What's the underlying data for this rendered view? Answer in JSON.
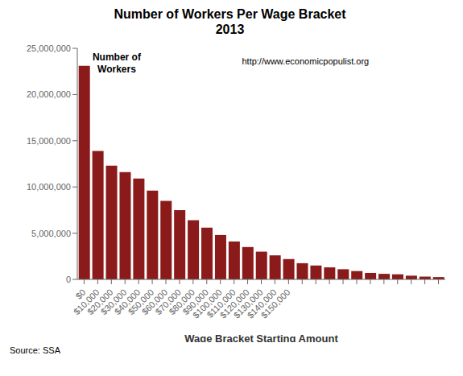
{
  "chart_data": {
    "type": "bar",
    "title": "Number of Workers Per Wage Bracket\n2013",
    "subtitle": "http://www.economicpopulist.org",
    "xlabel": "Wage Bracket Starting Amount",
    "ylabel": "Number of\nWorkers",
    "annotations": [
      "Source: SSA"
    ],
    "categories": [
      "$0",
      "$10,000",
      "$20,000",
      "$30,000",
      "$40,000",
      "$50,000",
      "$60,000",
      "$70,000",
      "$80,000",
      "$90,000",
      "$100,000",
      "$110,000",
      "$120,000",
      "$130,000",
      "$140,000",
      "$150,000",
      null,
      null,
      null,
      null,
      null,
      null,
      null,
      null,
      null,
      null,
      null
    ],
    "values": [
      23100000,
      13900000,
      12300000,
      11600000,
      10900000,
      9600000,
      8500000,
      7500000,
      6400000,
      5600000,
      4800000,
      4100000,
      3500000,
      3000000,
      2600000,
      2200000,
      1750000,
      1500000,
      1300000,
      1100000,
      900000,
      700000,
      600000,
      550000,
      400000,
      300000,
      250000
    ],
    "color": "#8B1A1A",
    "ylim": [
      0,
      25000000
    ],
    "yticks": [
      0,
      {
        "value": 5000000,
        "label": "5,000,000"
      },
      {
        "value": 10000000,
        "label": "10,000,000"
      },
      {
        "value": 15000000,
        "label": "15,000,000"
      },
      {
        "value": 20000000,
        "label": "20,000,000"
      },
      {
        "value": 25000000,
        "label": "25,000,000"
      }
    ],
    "grid": false
  }
}
